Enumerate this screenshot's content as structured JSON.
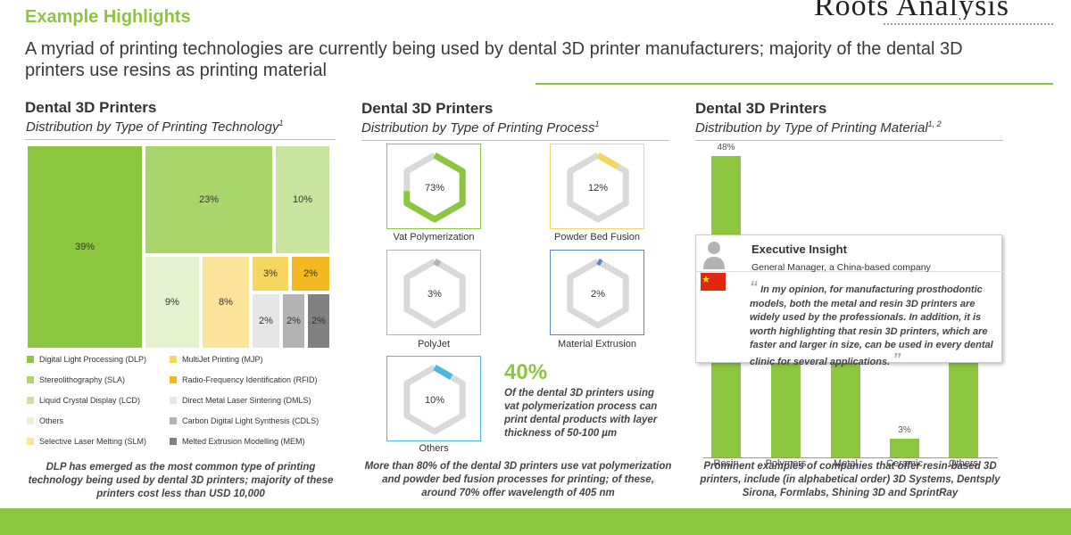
{
  "header": {
    "section_label": "Example Highlights",
    "logo_text": "Roots Analysis",
    "headline": "A myriad of printing technologies are currently being used by dental 3D printer manufacturers; majority of the dental 3D printers use resins as printing material"
  },
  "colors": {
    "accent": "#8cc63f",
    "dlp": "#8cc63f",
    "sla": "#a9d66a",
    "lcd": "#c8e5a0",
    "others": "#e4f2d0",
    "slm": "#fbe49a",
    "mjp": "#f7d660",
    "rfid": "#f4b820",
    "dmls": "#e6e6e6",
    "cdls": "#b3b3b3",
    "mem": "#808080"
  },
  "panel1": {
    "title": "Dental 3D Printers",
    "subtitle": "Distribution by Type of Printing Technology",
    "subtitle_note": "1",
    "footnote": "DLP has emerged as the most common type of printing technology being used by dental 3D printers; majority of these printers cost less than USD 10,000"
  },
  "panel2": {
    "title": "Dental 3D Printers",
    "subtitle": "Distribution by Type of Printing Process",
    "subtitle_note": "1",
    "big_value": "40%",
    "big_note": "Of the dental 3D printers using vat polymerization process can print dental products with layer thickness of 50-100 µm",
    "footnote": "More than 80% of the dental 3D printers use vat polymerization and powder bed fusion processes for printing; of these, around 70% offer wavelength of 405 nm"
  },
  "panel3": {
    "title": "Dental 3D Printers",
    "subtitle": "Distribution by Type of Printing Material",
    "subtitle_note": "1, 2",
    "footnote": "Prominent examples of companies that offer resin-based 3D printers, include (in alphabetical order) 3D Systems, Dentsply Sirona, Formlabs, Shining 3D and SprintRay",
    "insight": {
      "title": "Executive Insight",
      "role": "General Manager, a China-based company",
      "open_quote": "“",
      "close_quote": "”",
      "quote": "In my opinion, for manufacturing prosthodontic models, both the metal and resin 3D printers are widely used by the professionals. In addition, it is worth highlighting that resin 3D printers, which are faster and larger in size, can be used in every dental clinic for several applications."
    }
  },
  "chart_data": [
    {
      "type": "treemap",
      "title": "Distribution by Type of Printing Technology",
      "items": [
        {
          "name": "Digital Light Processing (DLP)",
          "value": 39,
          "label": "39%"
        },
        {
          "name": "Stereolithography (SLA)",
          "value": 23,
          "label": "23%"
        },
        {
          "name": "Liquid Crystal Display (LCD)",
          "value": 10,
          "label": "10%"
        },
        {
          "name": "Others",
          "value": 9,
          "label": "9%"
        },
        {
          "name": "Selective Laser Melting (SLM)",
          "value": 8,
          "label": "8%"
        },
        {
          "name": "MultiJet Printing (MJP)",
          "value": 3,
          "label": "3%"
        },
        {
          "name": "Radio-Frequency Identification (RFID)",
          "value": 2,
          "label": "2%"
        },
        {
          "name": "Direct Metal Laser Sintering (DMLS)",
          "value": 2,
          "label": "2%"
        },
        {
          "name": "Carbon Digital Light Synthesis (CDLS)",
          "value": 2,
          "label": "2%"
        },
        {
          "name": "Melted Extrusion Modelling (MEM)",
          "value": 2,
          "label": "2%"
        }
      ],
      "legend": [
        "Digital Light Processing (DLP)",
        "Stereolithography (SLA)",
        "Liquid Crystal Display (LCD)",
        "Others",
        "Selective Laser Melting  (SLM)",
        "MultiJet Printing (MJP)",
        "Radio-Frequency Identification (RFID)",
        "Direct Metal Laser Sintering (DMLS)",
        "Carbon Digital Light Synthesis (CDLS)",
        "Melted Extrusion Modelling (MEM)"
      ]
    },
    {
      "type": "progress-rings",
      "title": "Distribution by Type of Printing Process",
      "items": [
        {
          "name": "Vat Polymerization",
          "value": 73,
          "label": "73%",
          "color": "#8cc63f"
        },
        {
          "name": "Powder Bed Fusion",
          "value": 12,
          "label": "12%",
          "color": "#f7d660"
        },
        {
          "name": "PolyJet",
          "value": 3,
          "label": "3%",
          "color": "#b3b3b3"
        },
        {
          "name": "Material Extrusion",
          "value": 2,
          "label": "2%",
          "color": "#5b87c4"
        },
        {
          "name": "Others",
          "value": 10,
          "label": "10%",
          "color": "#4cb8e0"
        }
      ]
    },
    {
      "type": "bar",
      "title": "Distribution by Type of Printing Material",
      "categories": [
        "Resin",
        "Polymers",
        "Metal",
        "Ceramic",
        "Others"
      ],
      "values": [
        48,
        null,
        null,
        3,
        null
      ],
      "labels": [
        "48%",
        "",
        "",
        "3%",
        ""
      ],
      "ylim": [
        0,
        48
      ]
    }
  ]
}
